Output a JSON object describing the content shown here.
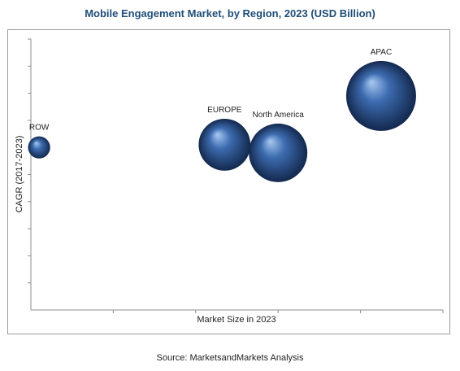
{
  "title": "Mobile Engagement Market, by Region, 2023 (USD Billion)",
  "source": "Source: MarketsandMarkets Analysis",
  "chart_data": {
    "type": "scatter",
    "title": "Mobile Engagement Market, by Region, 2023 (USD Billion)",
    "xlabel": "Market Size in 2023",
    "ylabel": "CAGR (2017-2023)",
    "axis_values_shown": false,
    "grid": false,
    "xlim": [
      0,
      100
    ],
    "ylim": [
      0,
      100
    ],
    "points": [
      {
        "label": "ROW",
        "x": 2,
        "y": 60,
        "size": 1
      },
      {
        "label": "EUROPE",
        "x": 47,
        "y": 61,
        "size": 5.5
      },
      {
        "label": "North America",
        "x": 60,
        "y": 58,
        "size": 7
      },
      {
        "label": "APAC",
        "x": 85,
        "y": 79,
        "size": 10
      }
    ],
    "colors": {
      "bubble": "#3d6cb0",
      "bubble_highlight": "#a9c9f2",
      "bubble_shadow": "#13284d"
    }
  }
}
